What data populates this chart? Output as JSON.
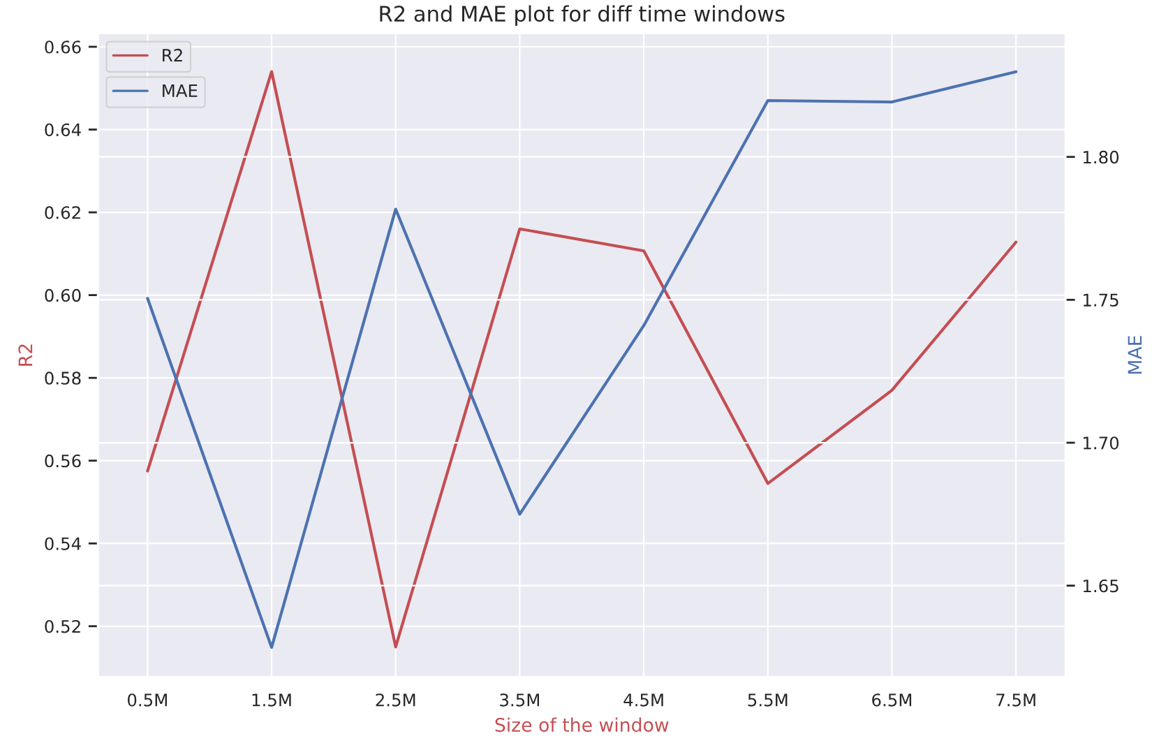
{
  "chart_data": {
    "type": "line",
    "title": "R2 and MAE plot for diff time windows",
    "xlabel": "Size of the window",
    "ylabel": "R2",
    "y2label": "MAE",
    "categories": [
      "0.5M",
      "1.5M",
      "2.5M",
      "3.5M",
      "4.5M",
      "5.5M",
      "6.5M",
      "7.5M"
    ],
    "series": [
      {
        "name": "R2",
        "color": "#c44e52",
        "values": [
          0.5575,
          0.654,
          0.515,
          0.616,
          0.6107,
          0.5545,
          0.577,
          0.6128
        ]
      },
      {
        "name": "MAE",
        "color": "#4c72b0",
        "axis": "y2",
        "values": [
          1.7505,
          1.6284,
          1.7817,
          1.675,
          1.741,
          1.8197,
          1.8192,
          1.8298
        ]
      }
    ],
    "ylim": [
      0.5077,
      0.6633
    ],
    "yticks": [
      0.52,
      0.54,
      0.56,
      0.58,
      {
        "value": 0.6,
        "label": "0.60"
      },
      0.62,
      0.64,
      0.66
    ],
    "y2lim": [
      1.618,
      1.8433
    ],
    "y2ticks": [
      1.65,
      {
        "value": 1.7,
        "label": "1.70"
      },
      1.75,
      {
        "value": 1.8,
        "label": "1.80"
      }
    ],
    "grid": true,
    "legend": "top left"
  }
}
